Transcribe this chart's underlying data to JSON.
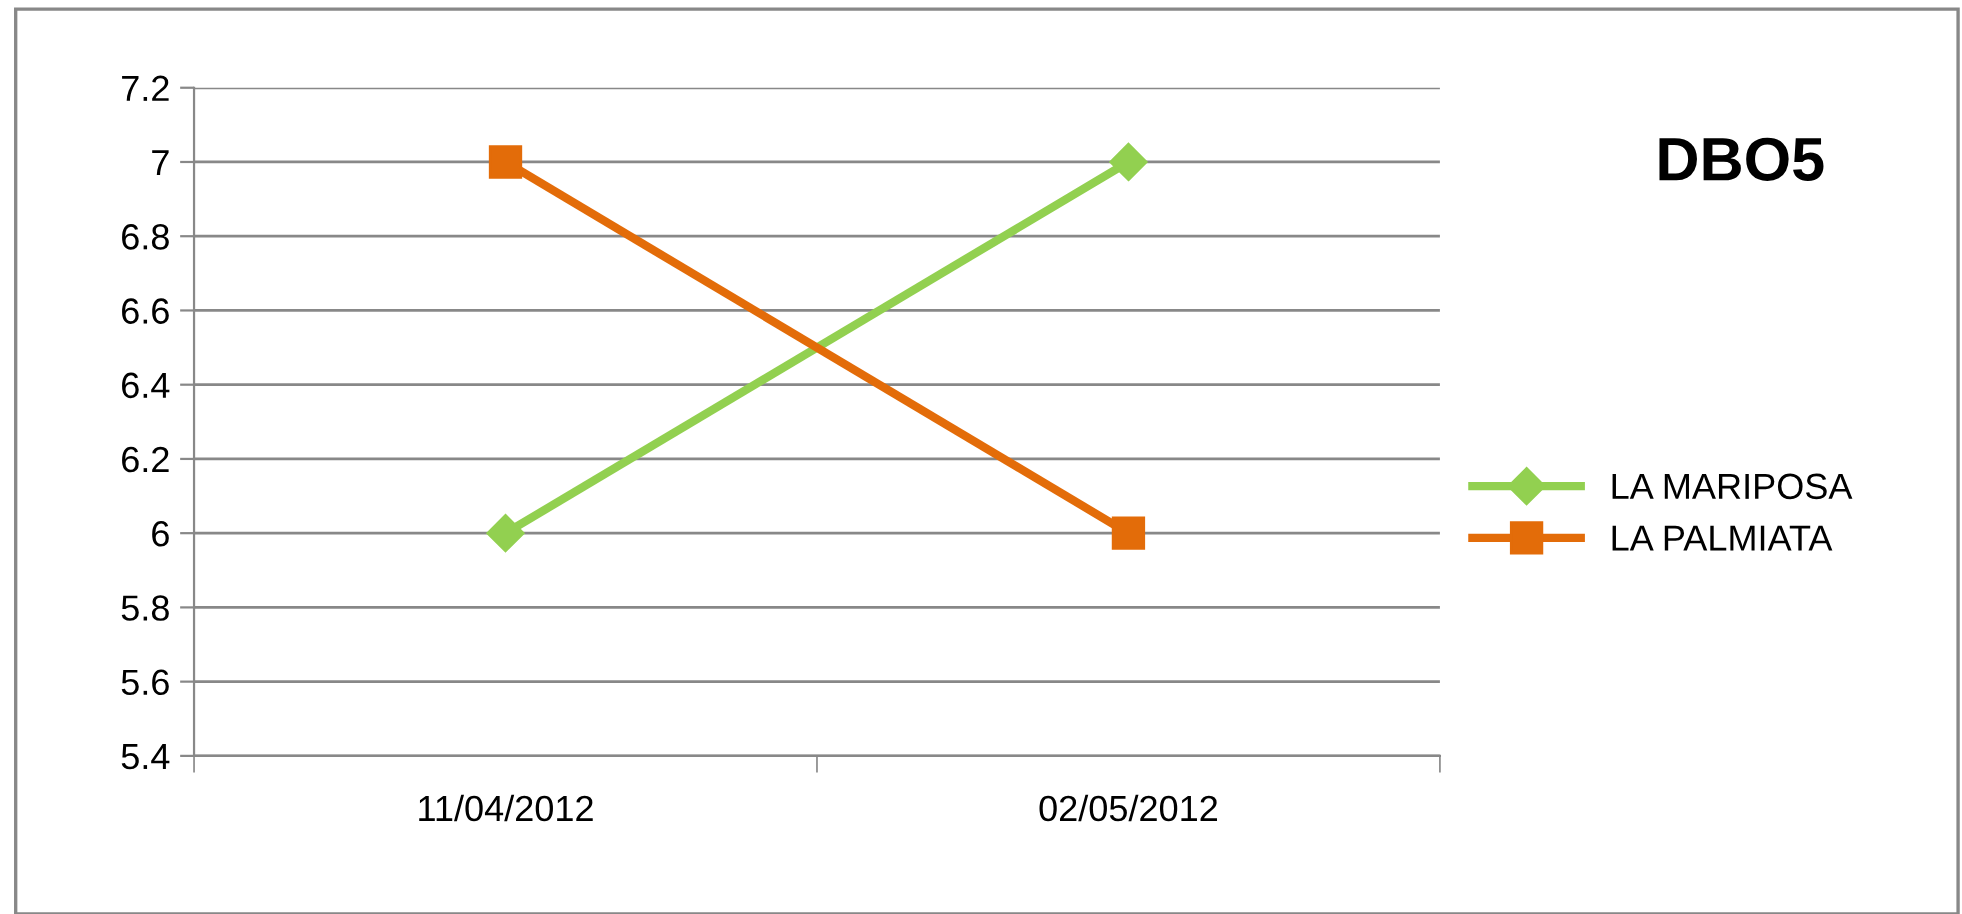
{
  "chart_data": {
    "type": "line",
    "title": "DBO5",
    "categories": [
      "11/04/2012",
      "02/05/2012"
    ],
    "series": [
      {
        "name": "LA MARIPOSA",
        "color": "#92d050",
        "values": [
          6,
          7
        ],
        "marker": "diamond"
      },
      {
        "name": "LA PALMIATA",
        "color": "#e36c09",
        "values": [
          7,
          6
        ],
        "marker": "square"
      }
    ],
    "ylim": [
      5.4,
      7.2
    ],
    "yticks": [
      5.4,
      5.6,
      5.8,
      6,
      6.2,
      6.4,
      6.6,
      6.8,
      7,
      7.2
    ],
    "grid": "y",
    "legend": "right",
    "line_style": "solid"
  }
}
